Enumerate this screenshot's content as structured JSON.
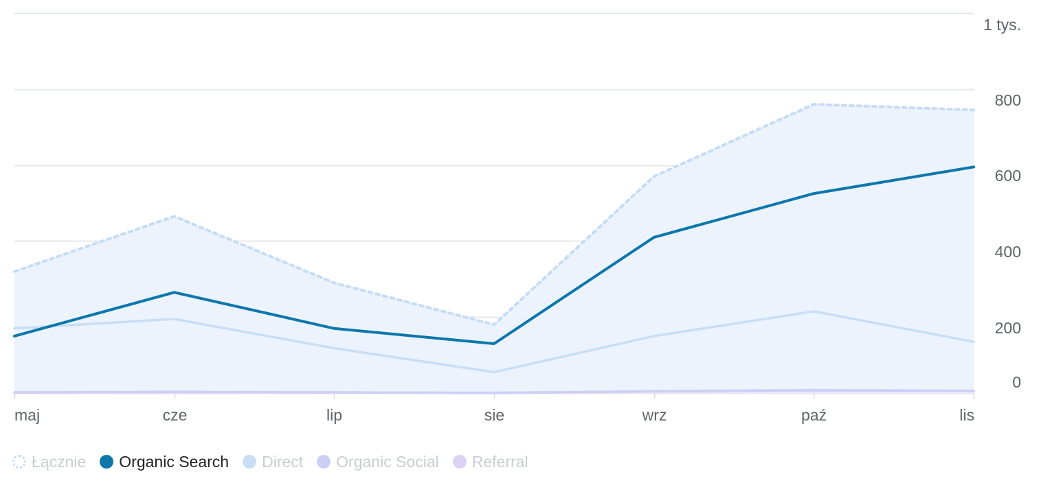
{
  "chart_data": {
    "type": "area",
    "categories": [
      "maj",
      "cze",
      "lip",
      "sie",
      "wrz",
      "paź",
      "lis"
    ],
    "y_tick_labels": [
      "0",
      "200",
      "400",
      "600",
      "800",
      "1 tys."
    ],
    "y_ticks": [
      0,
      200,
      400,
      600,
      800,
      1000
    ],
    "ylim": [
      0,
      1000
    ],
    "grid": true,
    "legend_position": "bottom-left",
    "total": {
      "name": "Łącznie",
      "values": [
        320,
        465,
        290,
        180,
        570,
        760,
        745
      ],
      "line_color": "#c5dcf6",
      "fill_color": "#ecf3fd",
      "style": "dotted-area",
      "active": false
    },
    "series": [
      {
        "name": "Organic Search",
        "values": [
          150,
          265,
          170,
          130,
          410,
          525,
          595
        ],
        "color": "#0b77ab",
        "active": true
      },
      {
        "name": "Direct",
        "values": [
          170,
          195,
          118,
          55,
          150,
          215,
          135
        ],
        "color": "#c8def6",
        "active": false
      },
      {
        "name": "Organic Social",
        "values": [
          2,
          3,
          2,
          0,
          5,
          8,
          6
        ],
        "color": "#ccd0f5",
        "active": false
      },
      {
        "name": "Referral",
        "values": [
          1,
          2,
          1,
          1,
          4,
          5,
          5
        ],
        "color": "#dcd2f6",
        "active": false
      }
    ]
  },
  "legend": {
    "active_text_color": "#202124",
    "inactive_text_color": "#c9cdd2"
  }
}
